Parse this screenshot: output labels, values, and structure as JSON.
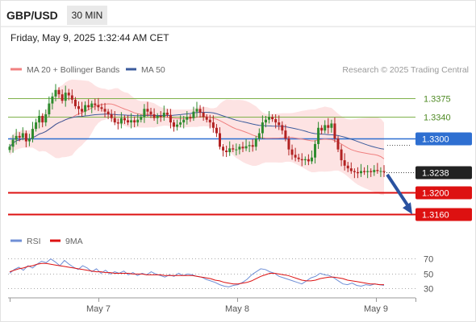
{
  "header": {
    "pair": "GBP/USD",
    "timeframe": "30 MIN",
    "datetime": "Friday, May 9, 2025 1:32:44 AM CET"
  },
  "legend": {
    "ma20_label": "MA 20 + Bollinger Bands",
    "ma50_label": "MA 50",
    "credit": "Research © 2025 Trading Central",
    "rsi_label": "RSI",
    "ma9_label": "9MA"
  },
  "colors": {
    "ma20": "#f08080",
    "bollinger_fill": "#fde3e3",
    "ma50": "#3b5b9c",
    "candle_up": "#2e8b2e",
    "candle_down": "#b22222",
    "pivot": "#2e6fd1",
    "resistance": "#7fb24a",
    "support": "#dd1111",
    "last_price": "#222222",
    "arrow": "#2a52a0",
    "rsi": "#6f8fd6",
    "rsi_ma9": "#dd1111"
  },
  "chart_data": [
    {
      "type": "candlestick",
      "title": "GBP/USD 30 MIN",
      "ylim": [
        1.3135,
        1.3415
      ],
      "x_labels": [
        "May 7",
        "May 8",
        "May 9"
      ],
      "levels": [
        {
          "value": "1.3375",
          "kind": "resistance"
        },
        {
          "value": "1.3340",
          "kind": "resistance"
        },
        {
          "value": "1.3300",
          "kind": "pivot"
        },
        {
          "value": "1.3238",
          "kind": "last"
        },
        {
          "value": "1.3200",
          "kind": "support"
        },
        {
          "value": "1.3160",
          "kind": "support"
        }
      ],
      "candles_close": [
        1.3285,
        1.3298,
        1.3305,
        1.3302,
        1.331,
        1.3295,
        1.33,
        1.3318,
        1.333,
        1.3342,
        1.333,
        1.3345,
        1.3365,
        1.3378,
        1.339,
        1.3382,
        1.337,
        1.3385,
        1.338,
        1.3372,
        1.336,
        1.3355,
        1.335,
        1.3362,
        1.3358,
        1.3365,
        1.3362,
        1.3358,
        1.3355,
        1.335,
        1.3345,
        1.3338,
        1.333,
        1.3328,
        1.3338,
        1.3334,
        1.333,
        1.3334,
        1.333,
        1.3335,
        1.334,
        1.3355,
        1.335,
        1.3345,
        1.3338,
        1.3342,
        1.334,
        1.3348,
        1.3344,
        1.333,
        1.3322,
        1.3326,
        1.333,
        1.3335,
        1.334,
        1.3338,
        1.335,
        1.3355,
        1.3348,
        1.334,
        1.3335,
        1.333,
        1.332,
        1.331,
        1.3285,
        1.3278,
        1.3275,
        1.3282,
        1.328,
        1.328,
        1.3285,
        1.3282,
        1.3286,
        1.3288,
        1.3285,
        1.33,
        1.331,
        1.333,
        1.3335,
        1.334,
        1.3336,
        1.333,
        1.3325,
        1.3315,
        1.33,
        1.328,
        1.327,
        1.3265,
        1.3262,
        1.326,
        1.3262,
        1.3258,
        1.3265,
        1.329,
        1.332,
        1.3315,
        1.3325,
        1.332,
        1.3328,
        1.33,
        1.328,
        1.326,
        1.325,
        1.3245,
        1.324,
        1.3238,
        1.3236,
        1.324,
        1.3238,
        1.324,
        1.3238,
        1.3242,
        1.324,
        1.324,
        1.3238
      ]
    },
    {
      "type": "line",
      "title": "RSI",
      "ylim": [
        25,
        75
      ],
      "y_ticks": [
        "70",
        "50",
        "30"
      ],
      "series": [
        {
          "name": "RSI",
          "values": [
            50,
            55,
            58,
            54,
            60,
            57,
            62,
            66,
            64,
            69,
            65,
            60,
            67,
            62,
            58,
            55,
            60,
            57,
            52,
            56,
            50,
            54,
            49,
            52,
            50,
            53,
            48,
            51,
            47,
            50,
            48,
            52,
            49,
            47,
            45,
            48,
            46,
            50,
            47,
            49,
            48,
            46,
            45,
            42,
            40,
            38,
            35,
            33,
            32,
            34,
            35,
            38,
            42,
            48,
            52,
            56,
            55,
            52,
            50,
            46,
            44,
            42,
            40,
            38,
            36,
            40,
            44,
            46,
            50,
            48,
            47,
            44,
            40,
            36,
            35,
            37,
            34,
            33,
            35,
            34,
            36,
            35,
            34
          ]
        },
        {
          "name": "9MA",
          "values": [
            52,
            54,
            56,
            57,
            59,
            60,
            62,
            63,
            63,
            62,
            61,
            60,
            59,
            58,
            57,
            56,
            55,
            54,
            53,
            52,
            52,
            51,
            51,
            50,
            50,
            50,
            50,
            49,
            49,
            49,
            48,
            48,
            48,
            48,
            47,
            47,
            47,
            47,
            47,
            47,
            47,
            46,
            45,
            44,
            43,
            41,
            40,
            38,
            37,
            36,
            36,
            37,
            38,
            40,
            43,
            46,
            48,
            50,
            50,
            49,
            48,
            47,
            45,
            43,
            41,
            40,
            40,
            41,
            43,
            44,
            45,
            45,
            44,
            43,
            41,
            40,
            39,
            38,
            37,
            36,
            36,
            35,
            35
          ]
        }
      ]
    }
  ]
}
